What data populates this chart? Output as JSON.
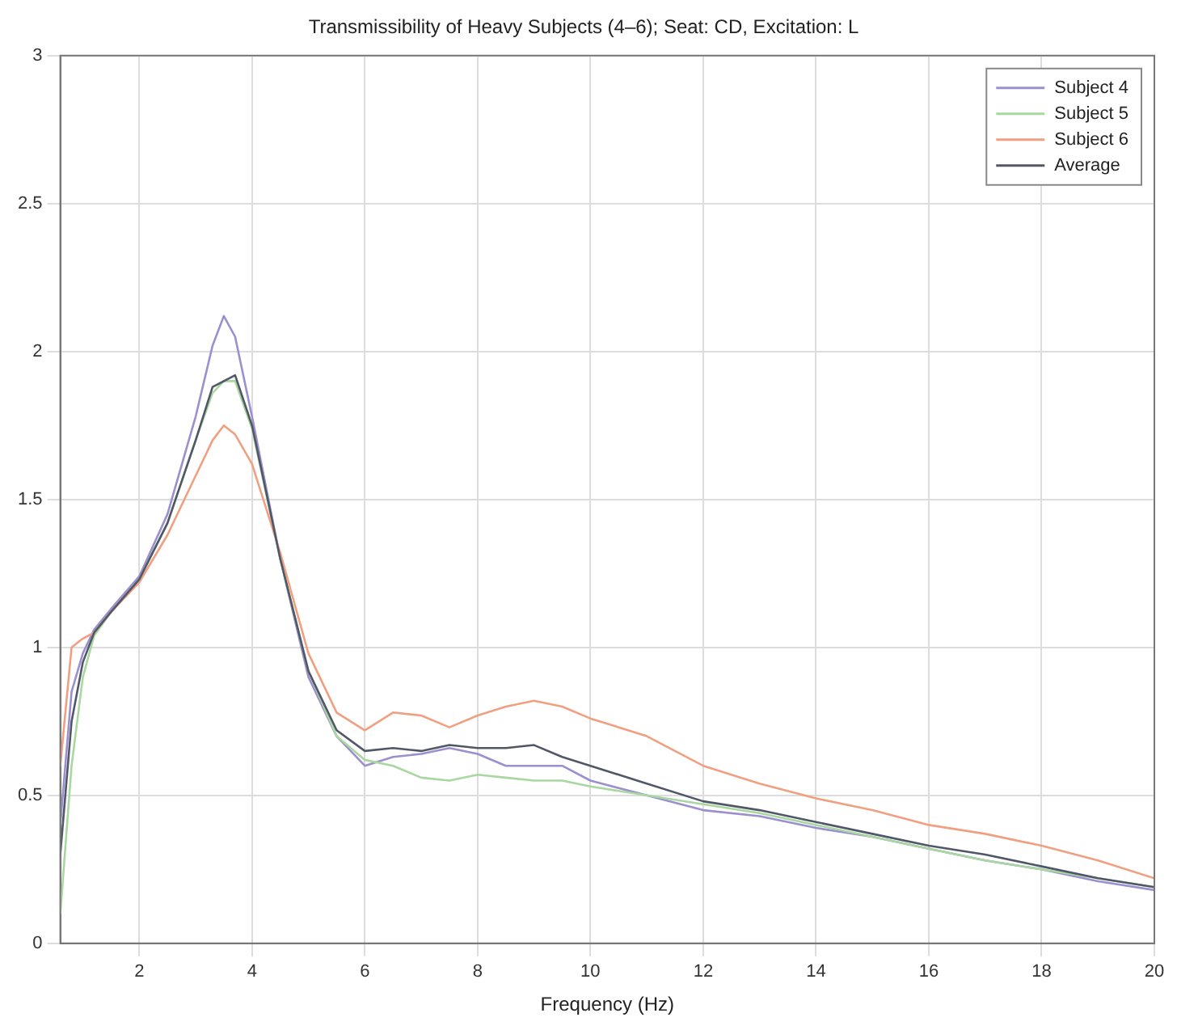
{
  "chart_data": {
    "type": "line",
    "title": "Transmissibility of Heavy Subjects (4–6); Seat: CD, Excitation: L",
    "xlabel": "Frequency (Hz)",
    "x": [
      0.6,
      0.8,
      1,
      1.2,
      1.5,
      2,
      2.5,
      3,
      3.3,
      3.5,
      3.7,
      4,
      4.5,
      5,
      5.5,
      6,
      6.5,
      7,
      7.5,
      8,
      8.5,
      9,
      9.5,
      10,
      11,
      12,
      13,
      14,
      15,
      16,
      17,
      18,
      19,
      20
    ],
    "series": [
      {
        "name": "Subject 4",
        "color": "#9c8fd0",
        "values": [
          0.4,
          0.85,
          0.98,
          1.06,
          1.13,
          1.24,
          1.45,
          1.78,
          2.02,
          2.12,
          2.05,
          1.78,
          1.3,
          0.9,
          0.7,
          0.6,
          0.63,
          0.64,
          0.66,
          0.64,
          0.6,
          0.6,
          0.6,
          0.55,
          0.5,
          0.45,
          0.43,
          0.39,
          0.36,
          0.32,
          0.28,
          0.25,
          0.21,
          0.18
        ]
      },
      {
        "name": "Subject 5",
        "color": "#a8d8a0",
        "values": [
          0.1,
          0.6,
          0.9,
          1.04,
          1.12,
          1.23,
          1.42,
          1.7,
          1.86,
          1.9,
          1.9,
          1.74,
          1.3,
          0.92,
          0.7,
          0.62,
          0.6,
          0.56,
          0.55,
          0.57,
          0.56,
          0.55,
          0.55,
          0.53,
          0.5,
          0.47,
          0.44,
          0.4,
          0.36,
          0.32,
          0.28,
          0.25,
          0.22,
          0.19
        ]
      },
      {
        "name": "Subject 6",
        "color": "#f0a080",
        "values": [
          0.6,
          1.0,
          1.03,
          1.05,
          1.12,
          1.22,
          1.38,
          1.58,
          1.7,
          1.75,
          1.72,
          1.62,
          1.32,
          0.98,
          0.78,
          0.72,
          0.78,
          0.77,
          0.73,
          0.77,
          0.8,
          0.82,
          0.8,
          0.76,
          0.7,
          0.6,
          0.54,
          0.49,
          0.45,
          0.4,
          0.37,
          0.33,
          0.28,
          0.22
        ]
      },
      {
        "name": "Average",
        "color": "#505868",
        "values": [
          0.3,
          0.75,
          0.95,
          1.05,
          1.12,
          1.23,
          1.42,
          1.7,
          1.88,
          1.9,
          1.92,
          1.75,
          1.3,
          0.92,
          0.72,
          0.65,
          0.66,
          0.65,
          0.67,
          0.66,
          0.66,
          0.67,
          0.63,
          0.6,
          0.54,
          0.48,
          0.45,
          0.41,
          0.37,
          0.33,
          0.3,
          0.26,
          0.22,
          0.19
        ]
      }
    ],
    "xlim": [
      0.6,
      20
    ],
    "xticks": [
      2,
      4,
      6,
      8,
      10,
      12,
      14,
      16,
      18,
      20
    ],
    "ylim": [
      0,
      3
    ],
    "yticks": [
      0,
      0.5,
      1,
      1.5,
      2,
      2.5,
      3
    ],
    "grid": true,
    "legend": "top right",
    "marker": "none",
    "line_style": "solid"
  }
}
